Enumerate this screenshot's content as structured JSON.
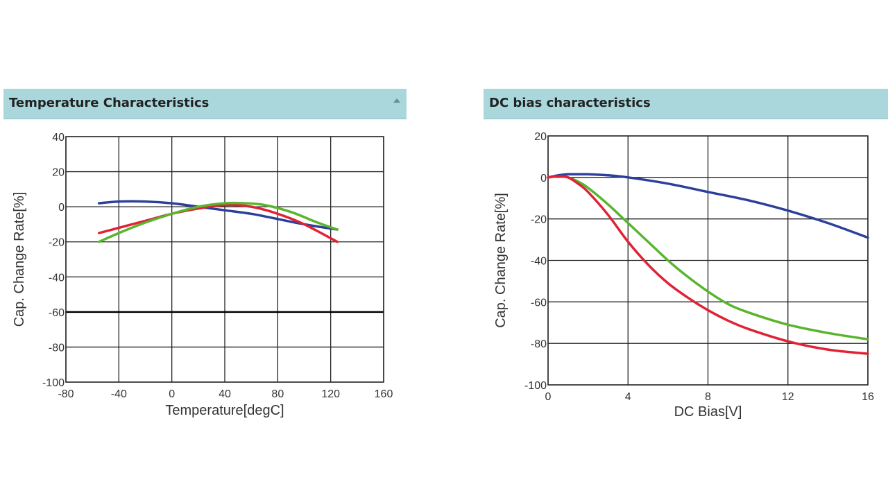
{
  "panels": [
    {
      "title": "Temperature Characteristics",
      "collapse_icon": "chevron-up-icon"
    },
    {
      "title": "DC bias characteristics",
      "collapse_icon": "chevron-up-icon"
    }
  ],
  "chart_data": [
    {
      "type": "line",
      "title": "Temperature Characteristics",
      "xlabel": "Temperature[degC]",
      "ylabel": "Cap. Change Rate[%]",
      "xlim": [
        -80,
        160
      ],
      "ylim": [
        -100,
        40
      ],
      "xticks": [
        -80,
        -40,
        0,
        40,
        80,
        120,
        160
      ],
      "yticks": [
        40,
        20,
        0,
        -20,
        -40,
        -60,
        -80,
        -100
      ],
      "grid": true,
      "reference_lines": [
        {
          "y": -60,
          "color": "#000000"
        }
      ],
      "series": [
        {
          "name": "blue",
          "color": "#2b3f9b",
          "x": [
            -55,
            -40,
            -20,
            0,
            20,
            40,
            60,
            80,
            100,
            125
          ],
          "y": [
            2,
            3,
            3,
            2,
            0,
            -2,
            -4,
            -7,
            -10,
            -13
          ]
        },
        {
          "name": "red",
          "color": "#e02236",
          "x": [
            -55,
            -40,
            -20,
            0,
            20,
            40,
            60,
            80,
            100,
            125
          ],
          "y": [
            -15,
            -12,
            -8,
            -4,
            -1,
            1,
            0,
            -4,
            -10,
            -20
          ]
        },
        {
          "name": "green",
          "color": "#59b52e",
          "x": [
            -55,
            -40,
            -20,
            0,
            20,
            40,
            55,
            70,
            90,
            110,
            125
          ],
          "y": [
            -20,
            -15,
            -9,
            -4,
            0,
            2,
            2,
            1,
            -3,
            -9,
            -13
          ]
        }
      ]
    },
    {
      "type": "line",
      "title": "DC bias characteristics",
      "xlabel": "DC Bias[V]",
      "ylabel": "Cap. Change Rate[%]",
      "xlim": [
        0,
        16
      ],
      "ylim": [
        -100,
        20
      ],
      "xticks": [
        0,
        4,
        8,
        12,
        16
      ],
      "yticks": [
        20,
        0,
        -20,
        -40,
        -60,
        -80,
        -100
      ],
      "grid": true,
      "series": [
        {
          "name": "blue",
          "color": "#2b3f9b",
          "x": [
            0,
            0.5,
            1,
            1.5,
            2,
            3,
            4,
            6,
            8,
            10,
            12,
            14,
            16
          ],
          "y": [
            0,
            1,
            1.5,
            1.5,
            1.5,
            1,
            0,
            -3,
            -7,
            -11,
            -16,
            -22,
            -29
          ]
        },
        {
          "name": "green",
          "color": "#59b52e",
          "x": [
            0,
            0.5,
            1,
            1.5,
            2,
            3,
            4,
            5,
            6,
            7,
            8,
            9,
            10,
            12,
            14,
            16
          ],
          "y": [
            0,
            0.5,
            0,
            -2,
            -5,
            -13,
            -22,
            -31,
            -40,
            -48,
            -55,
            -61,
            -65,
            -71,
            -75,
            -78
          ]
        },
        {
          "name": "red",
          "color": "#e02236",
          "x": [
            0,
            0.5,
            1,
            1.5,
            2,
            3,
            4,
            5,
            6,
            7,
            8,
            9,
            10,
            12,
            14,
            16
          ],
          "y": [
            0,
            0.5,
            0,
            -3,
            -7,
            -18,
            -31,
            -42,
            -51,
            -58,
            -64,
            -69,
            -73,
            -79,
            -83,
            -85
          ]
        }
      ]
    }
  ]
}
